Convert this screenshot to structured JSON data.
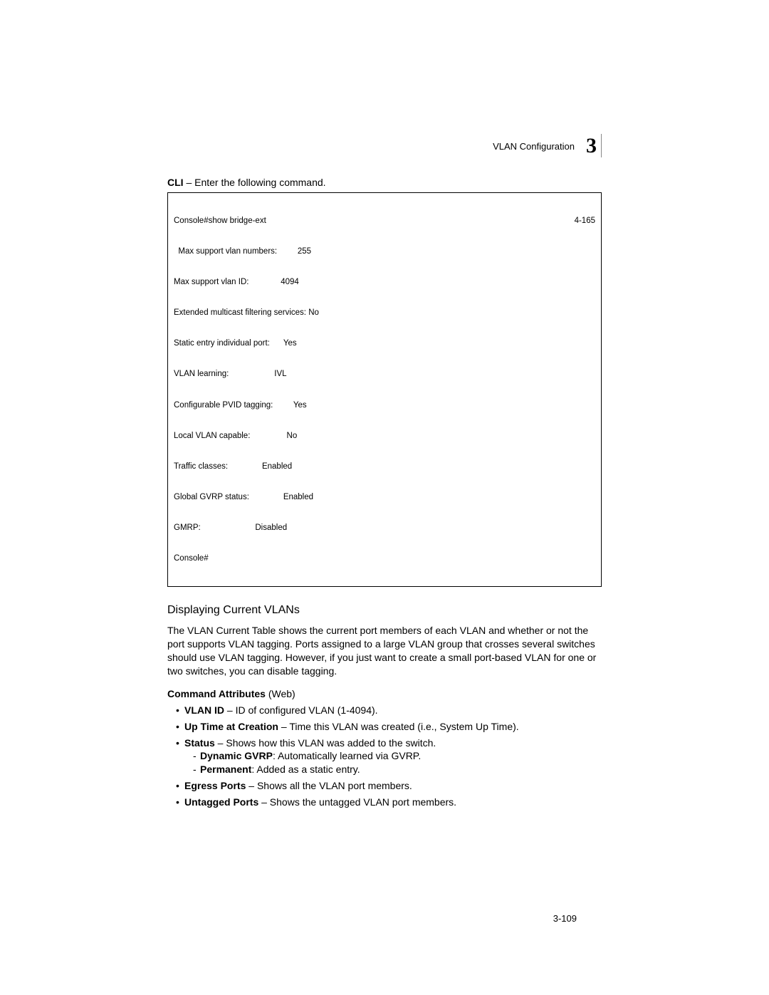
{
  "header": {
    "section_label": "VLAN Configuration",
    "chapter_number": "3"
  },
  "cli_intro": {
    "bold": "CLI",
    "rest": " – Enter the following command."
  },
  "console": {
    "first_line_left": "Console#show bridge-ext",
    "first_line_right": "4-165",
    "lines": [
      "  Max support vlan numbers:         255",
      "Max support vlan ID:              4094",
      "Extended multicast filtering services: No",
      "Static entry individual port:      Yes",
      "VLAN learning:                    IVL",
      "Configurable PVID tagging:         Yes",
      "Local VLAN capable:                No",
      "Traffic classes:               Enabled",
      "Global GVRP status:               Enabled",
      "GMRP:                        Disabled",
      "Console#"
    ]
  },
  "section_title": "Displaying Current VLANs",
  "body_paragraph": "The VLAN Current Table shows the current port members of each VLAN and whether or not the port supports VLAN tagging. Ports assigned to a large VLAN group that crosses several switches should use VLAN tagging. However, if you just want to create a small port-based VLAN for one or two switches, you can disable tagging.",
  "cmd_attr": {
    "bold": "Command Attributes",
    "rest": " (Web)"
  },
  "bullets": [
    {
      "bold": "VLAN ID",
      "rest": " – ID of configured VLAN (1-4094)."
    },
    {
      "bold": "Up Time at Creation",
      "rest": " – Time this VLAN was created (i.e., System Up Time)."
    },
    {
      "bold": "Status",
      "rest": " – Shows how this VLAN was added to the switch.",
      "sub": [
        {
          "bold": "Dynamic GVRP",
          "rest": ": Automatically learned via GVRP."
        },
        {
          "bold": "Permanent",
          "rest": ": Added as a static entry."
        }
      ]
    },
    {
      "bold": "Egress Ports",
      "rest": " – Shows all the VLAN port members."
    },
    {
      "bold": "Untagged Ports",
      "rest": " – Shows the untagged VLAN port members."
    }
  ],
  "page_number": "3-109"
}
